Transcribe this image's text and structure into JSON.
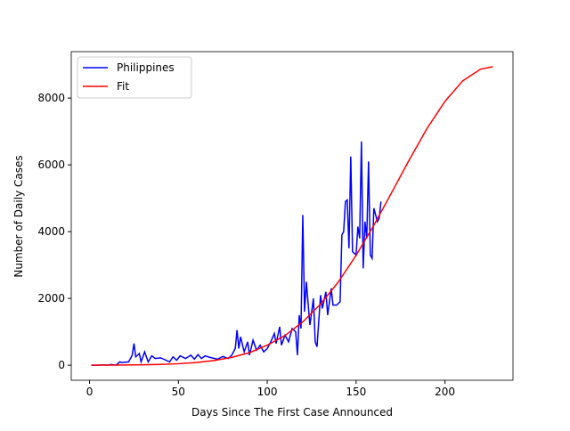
{
  "chart_data": {
    "type": "line",
    "xlabel": "Days Since The First Case Announced",
    "ylabel": "Number of Daily Cases",
    "xlim": [
      -10.3,
      238.3
    ],
    "xticks": [
      0,
      50,
      100,
      150,
      200
    ],
    "ylim": [
      -450,
      9390
    ],
    "yticks": [
      0,
      2000,
      4000,
      6000,
      8000
    ],
    "legend": "upper left",
    "series": [
      {
        "name": "Philippines",
        "color": "#0000ff",
        "x": [
          1,
          5,
          8,
          10,
          12,
          15,
          17,
          18,
          20,
          22,
          24,
          25,
          26,
          28,
          29,
          31,
          33,
          35,
          37,
          40,
          43,
          45,
          47,
          49,
          51,
          54,
          57,
          59,
          61,
          63,
          65,
          68,
          72,
          75,
          78,
          80,
          82,
          83,
          84,
          85,
          87,
          89,
          90,
          92,
          94,
          96,
          98,
          100,
          102,
          104,
          105,
          107,
          108,
          110,
          112,
          114,
          116,
          117,
          118,
          119,
          120,
          121,
          122,
          124,
          126,
          127,
          128,
          130,
          131,
          133,
          134,
          136,
          137,
          139,
          141,
          142,
          143,
          144,
          145,
          146,
          147,
          148,
          150,
          151,
          152,
          153,
          154,
          155,
          156,
          157,
          158,
          159,
          160,
          162,
          163,
          164
        ],
        "values": [
          0,
          0,
          10,
          0,
          20,
          5,
          100,
          80,
          90,
          100,
          300,
          650,
          250,
          350,
          100,
          400,
          100,
          280,
          200,
          220,
          150,
          100,
          250,
          150,
          280,
          200,
          300,
          180,
          320,
          200,
          280,
          230,
          180,
          260,
          200,
          300,
          500,
          1050,
          500,
          850,
          400,
          700,
          300,
          750,
          450,
          600,
          400,
          500,
          700,
          950,
          650,
          1150,
          600,
          900,
          700,
          1100,
          1000,
          300,
          1500,
          1100,
          4500,
          1600,
          2500,
          1200,
          2000,
          700,
          550,
          2100,
          1700,
          2200,
          1500,
          2300,
          1800,
          1800,
          1900,
          3900,
          4000,
          4900,
          4950,
          3500,
          6250,
          3400,
          3300,
          4150,
          3800,
          6700,
          2900,
          4300,
          3800,
          6100,
          3300,
          3200,
          4700,
          4300,
          4400,
          4900
        ]
      },
      {
        "name": "Fit",
        "color": "#ff0000",
        "x": [
          1,
          10,
          20,
          30,
          40,
          50,
          60,
          70,
          80,
          90,
          100,
          110,
          120,
          130,
          140,
          150,
          160,
          170,
          180,
          190,
          200,
          210,
          220,
          227
        ],
        "values": [
          2,
          3,
          6,
          13,
          24,
          45,
          81,
          140,
          234,
          377,
          600,
          889,
          1297,
          1829,
          2493,
          3289,
          4193,
          5168,
          6157,
          7097,
          7900,
          8515,
          8866,
          8940
        ]
      }
    ]
  }
}
